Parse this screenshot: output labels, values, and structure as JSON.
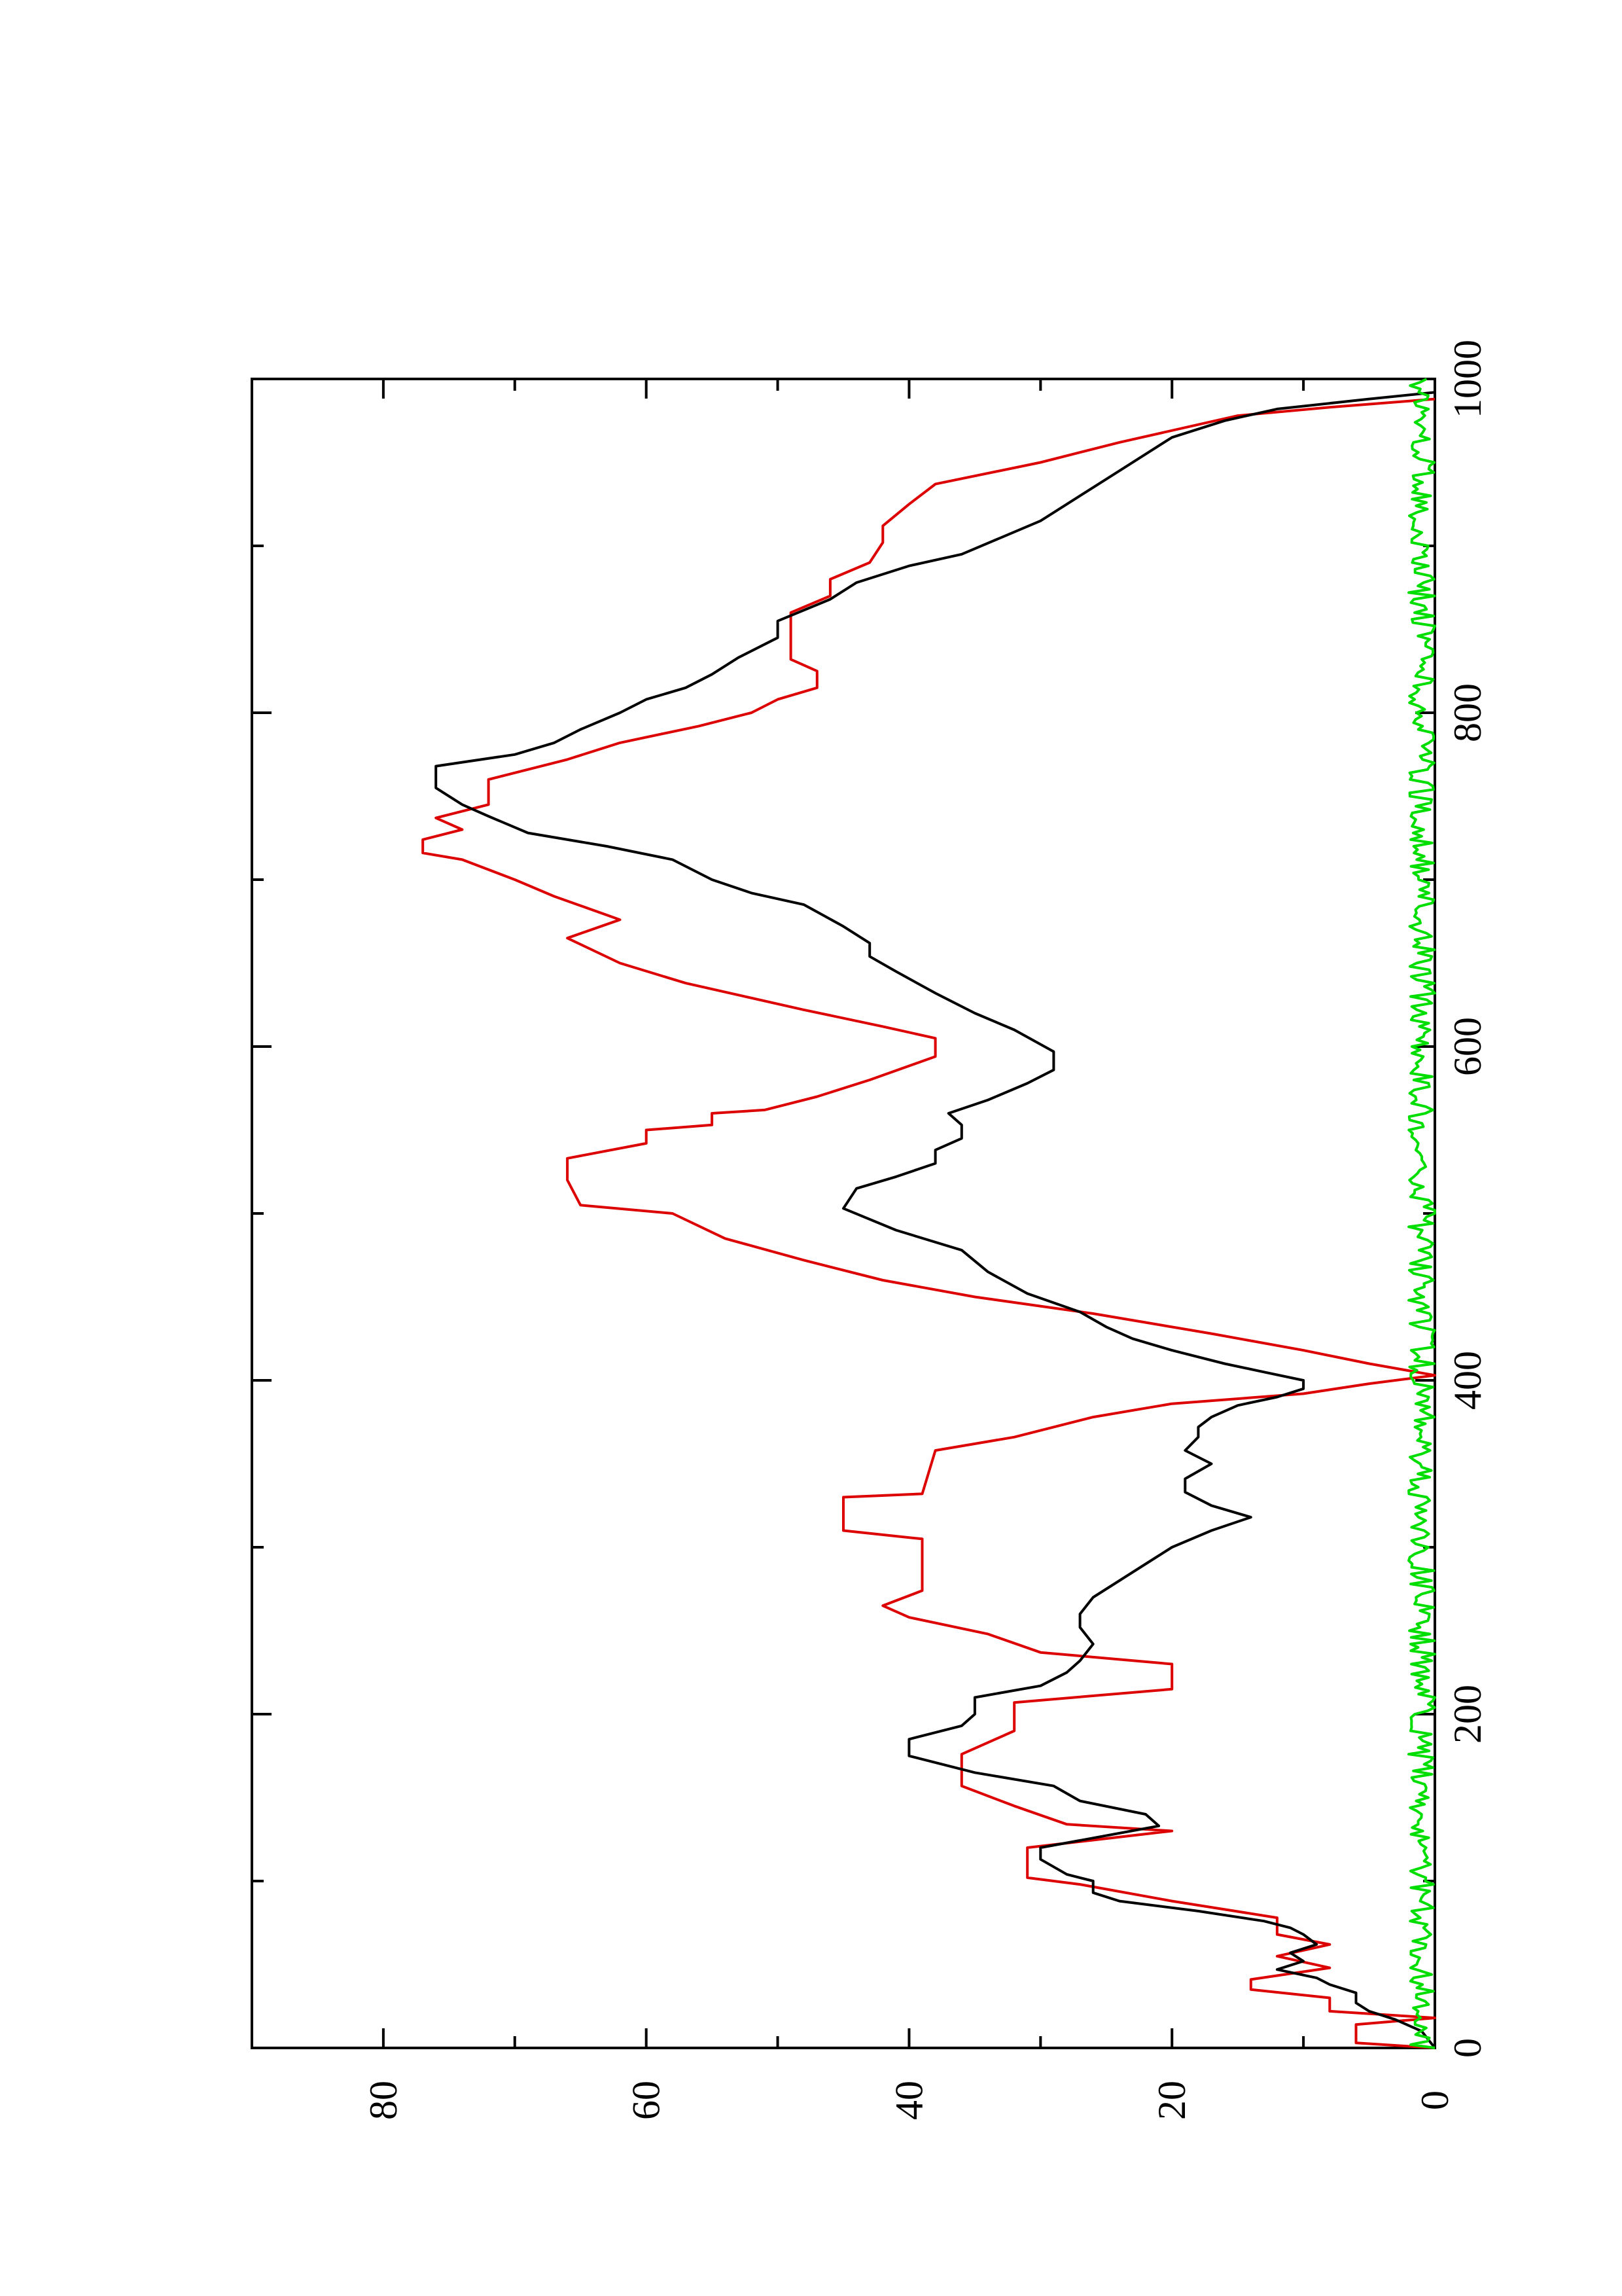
{
  "chart_data": {
    "type": "line",
    "orientation": "rotated-90-ccw",
    "title": "",
    "xlabel": "",
    "ylabel": "",
    "xlim": [
      0,
      1000
    ],
    "ylim": [
      0,
      90
    ],
    "x_ticks": [
      0,
      200,
      400,
      600,
      800,
      1000
    ],
    "x_minor_ticks": [
      100,
      300,
      500,
      700,
      900
    ],
    "y_ticks": [
      0,
      20,
      40,
      60,
      80
    ],
    "y_minor_ticks": [
      10,
      30,
      50,
      70
    ],
    "grid": false,
    "legend": "none",
    "series": [
      {
        "color": "#dd0000",
        "points": [
          [
            0,
            0
          ],
          [
            3,
            6
          ],
          [
            14,
            6
          ],
          [
            18,
            0
          ],
          [
            22,
            8
          ],
          [
            30,
            8
          ],
          [
            35,
            14
          ],
          [
            41,
            14
          ],
          [
            48,
            8
          ],
          [
            55,
            12
          ],
          [
            62,
            8
          ],
          [
            68,
            12
          ],
          [
            78,
            12
          ],
          [
            88,
            20
          ],
          [
            98,
            27
          ],
          [
            102,
            31
          ],
          [
            120,
            31
          ],
          [
            130,
            20
          ],
          [
            134,
            28
          ],
          [
            145,
            32
          ],
          [
            157,
            36
          ],
          [
            176,
            36
          ],
          [
            190,
            32
          ],
          [
            207,
            32
          ],
          [
            215,
            20
          ],
          [
            230,
            20
          ],
          [
            237,
            30
          ],
          [
            248,
            34
          ],
          [
            258,
            40
          ],
          [
            265,
            42
          ],
          [
            274,
            39
          ],
          [
            305,
            39
          ],
          [
            310,
            45
          ],
          [
            330,
            45
          ],
          [
            332,
            39
          ],
          [
            358,
            38
          ],
          [
            366,
            32
          ],
          [
            378,
            26
          ],
          [
            386,
            20
          ],
          [
            392,
            10
          ],
          [
            398,
            5
          ],
          [
            403,
            0
          ],
          [
            410,
            5
          ],
          [
            418,
            10
          ],
          [
            428,
            17
          ],
          [
            440,
            26
          ],
          [
            450,
            35
          ],
          [
            460,
            42
          ],
          [
            472,
            48
          ],
          [
            485,
            54
          ],
          [
            500,
            58
          ],
          [
            505,
            65
          ],
          [
            520,
            66
          ],
          [
            533,
            66
          ],
          [
            542,
            60
          ],
          [
            550,
            60
          ],
          [
            553,
            55
          ],
          [
            560,
            55
          ],
          [
            562,
            51
          ],
          [
            570,
            47
          ],
          [
            580,
            43
          ],
          [
            594,
            38
          ],
          [
            605,
            38
          ],
          [
            612,
            42
          ],
          [
            622,
            48
          ],
          [
            638,
            57
          ],
          [
            650,
            62
          ],
          [
            665,
            66
          ],
          [
            676,
            62
          ],
          [
            690,
            67
          ],
          [
            700,
            70
          ],
          [
            712,
            74
          ],
          [
            716,
            77
          ],
          [
            724,
            77
          ],
          [
            730,
            74
          ],
          [
            737,
            76
          ],
          [
            745,
            72
          ],
          [
            760,
            72
          ],
          [
            772,
            66
          ],
          [
            782,
            62
          ],
          [
            792,
            56
          ],
          [
            800,
            52
          ],
          [
            808,
            50
          ],
          [
            815,
            47
          ],
          [
            825,
            47
          ],
          [
            832,
            49
          ],
          [
            845,
            49
          ],
          [
            860,
            49
          ],
          [
            870,
            46
          ],
          [
            880,
            46
          ],
          [
            890,
            43
          ],
          [
            902,
            42
          ],
          [
            912,
            42
          ],
          [
            925,
            40
          ],
          [
            937,
            38
          ],
          [
            950,
            30
          ],
          [
            962,
            24
          ],
          [
            978,
            15
          ],
          [
            983,
            8
          ],
          [
            988,
            0
          ]
        ]
      },
      {
        "color": "#000000",
        "points": [
          [
            0,
            0
          ],
          [
            10,
            1
          ],
          [
            17,
            3
          ],
          [
            22,
            5
          ],
          [
            27,
            6
          ],
          [
            33,
            6
          ],
          [
            38,
            8
          ],
          [
            42,
            9
          ],
          [
            47,
            12
          ],
          [
            52,
            10
          ],
          [
            57,
            11
          ],
          [
            62,
            9
          ],
          [
            68,
            10
          ],
          [
            72,
            11
          ],
          [
            76,
            13
          ],
          [
            82,
            18
          ],
          [
            88,
            24
          ],
          [
            93,
            26
          ],
          [
            100,
            26
          ],
          [
            104,
            28
          ],
          [
            113,
            30
          ],
          [
            120,
            30
          ],
          [
            133,
            21
          ],
          [
            140,
            22
          ],
          [
            148,
            27
          ],
          [
            157,
            29
          ],
          [
            165,
            35
          ],
          [
            175,
            40
          ],
          [
            185,
            40
          ],
          [
            193,
            36
          ],
          [
            200,
            35
          ],
          [
            210,
            35
          ],
          [
            217,
            30
          ],
          [
            225,
            28
          ],
          [
            232,
            27
          ],
          [
            242,
            26
          ],
          [
            252,
            27
          ],
          [
            260,
            27
          ],
          [
            270,
            26
          ],
          [
            280,
            24
          ],
          [
            290,
            22
          ],
          [
            300,
            20
          ],
          [
            310,
            17
          ],
          [
            318,
            14
          ],
          [
            325,
            17
          ],
          [
            333,
            19
          ],
          [
            341,
            19
          ],
          [
            350,
            17
          ],
          [
            358,
            19
          ],
          [
            366,
            18
          ],
          [
            372,
            18
          ],
          [
            378,
            17
          ],
          [
            385,
            15
          ],
          [
            390,
            12
          ],
          [
            395,
            10
          ],
          [
            400,
            10
          ],
          [
            405,
            13
          ],
          [
            410,
            16
          ],
          [
            418,
            20
          ],
          [
            425,
            23
          ],
          [
            432,
            25
          ],
          [
            441,
            27
          ],
          [
            452,
            31
          ],
          [
            465,
            34
          ],
          [
            478,
            36
          ],
          [
            490,
            41
          ],
          [
            503,
            45
          ],
          [
            515,
            44
          ],
          [
            522,
            41
          ],
          [
            530,
            38
          ],
          [
            538,
            38
          ],
          [
            545,
            36
          ],
          [
            553,
            36
          ],
          [
            560,
            37
          ],
          [
            568,
            34
          ],
          [
            578,
            31
          ],
          [
            586,
            29
          ],
          [
            597,
            29
          ],
          [
            610,
            32
          ],
          [
            620,
            35
          ],
          [
            632,
            38
          ],
          [
            645,
            41
          ],
          [
            654,
            43
          ],
          [
            662,
            43
          ],
          [
            672,
            45
          ],
          [
            685,
            48
          ],
          [
            692,
            52
          ],
          [
            700,
            55
          ],
          [
            712,
            58
          ],
          [
            720,
            63
          ],
          [
            728,
            69
          ],
          [
            738,
            72
          ],
          [
            745,
            74
          ],
          [
            755,
            76
          ],
          [
            768,
            76
          ],
          [
            775,
            70
          ],
          [
            782,
            67
          ],
          [
            790,
            65
          ],
          [
            800,
            62
          ],
          [
            808,
            60
          ],
          [
            815,
            57
          ],
          [
            823,
            55
          ],
          [
            833,
            53
          ],
          [
            845,
            50
          ],
          [
            855,
            50
          ],
          [
            868,
            46
          ],
          [
            878,
            44
          ],
          [
            888,
            40
          ],
          [
            895,
            36
          ],
          [
            905,
            33
          ],
          [
            915,
            30
          ],
          [
            925,
            28
          ],
          [
            935,
            26
          ],
          [
            945,
            24
          ],
          [
            955,
            22
          ],
          [
            965,
            20
          ],
          [
            975,
            16
          ],
          [
            982,
            12
          ],
          [
            988,
            5
          ],
          [
            992,
            0
          ]
        ]
      },
      {
        "color": "#00dd00",
        "noise_seed": 7,
        "noise_amplitude": 1.0,
        "baseline": 1.0,
        "samples": 500
      }
    ]
  }
}
